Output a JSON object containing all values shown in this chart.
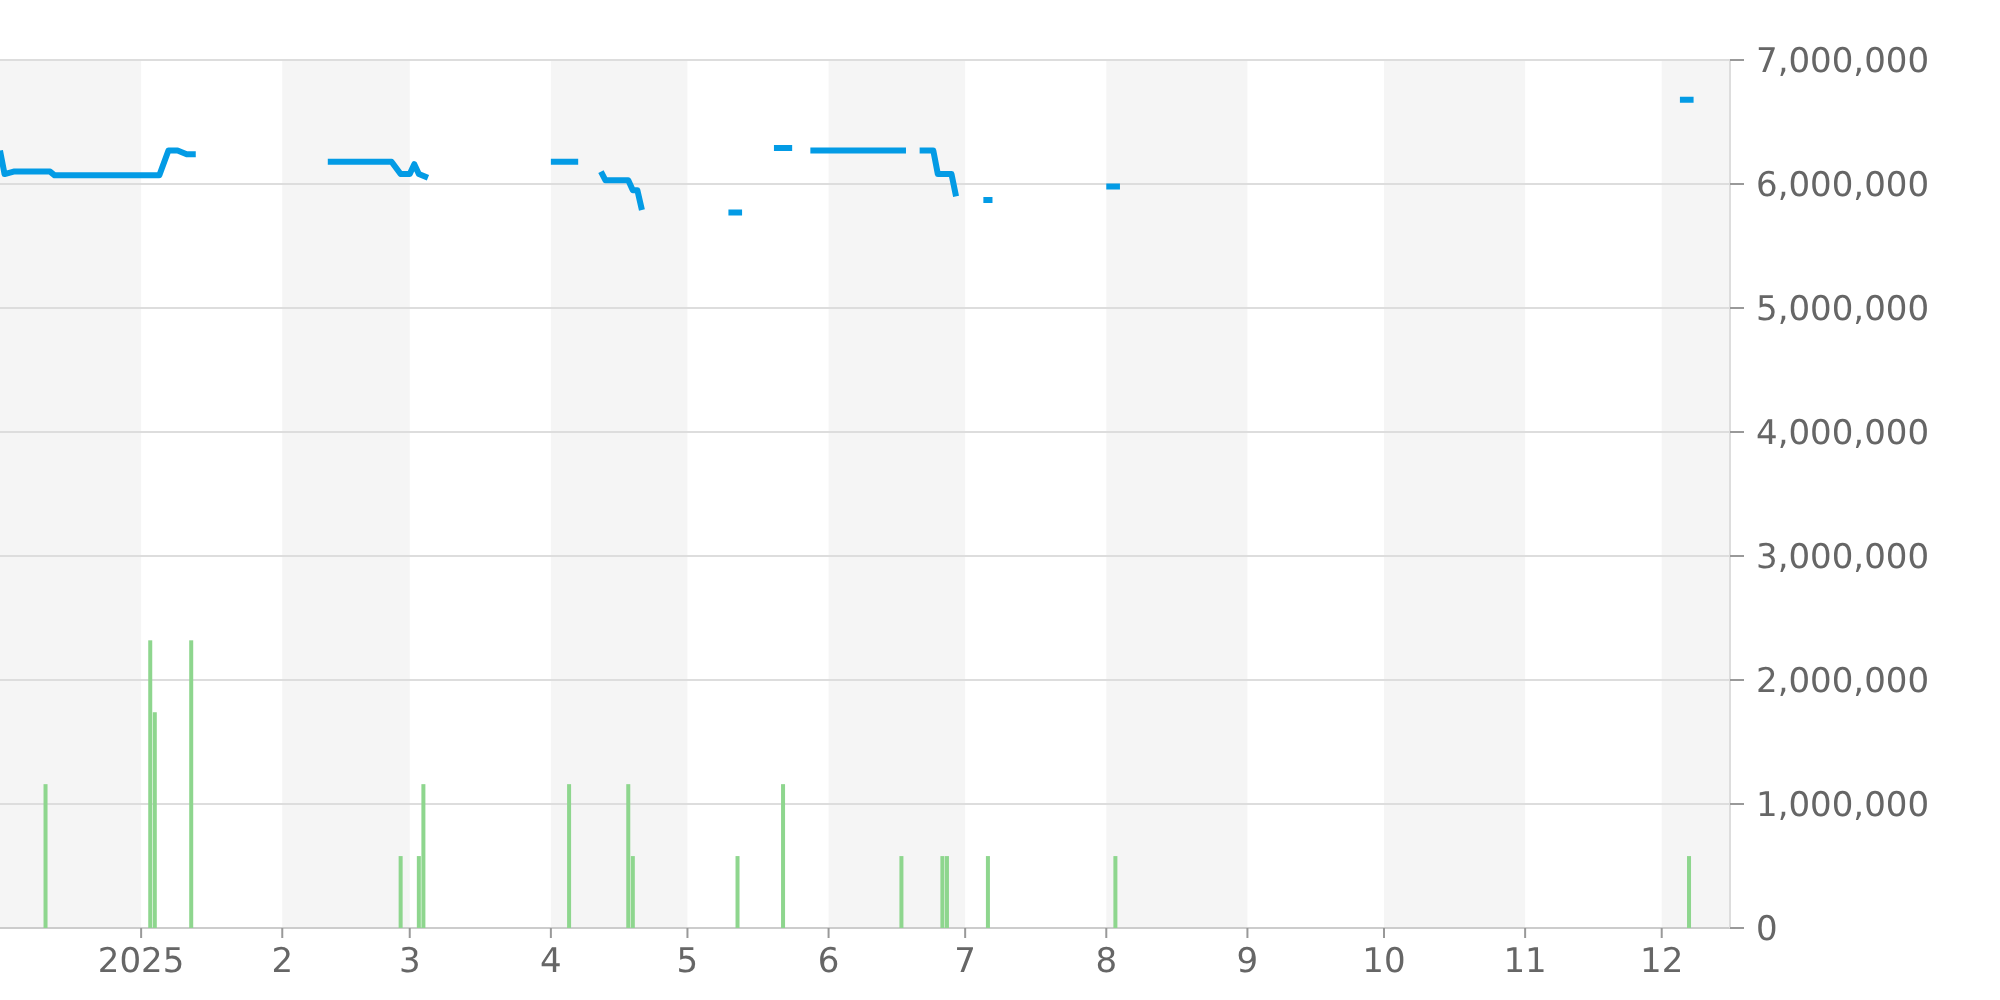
{
  "chart_data": {
    "type": "line",
    "xlim": [
      "2024-12-01",
      "2025-12-16"
    ],
    "xticks": [
      {
        "value": "2025-01-01",
        "label": "2025"
      },
      {
        "value": "2025-02-01",
        "label": "2"
      },
      {
        "value": "2025-03-01",
        "label": "3"
      },
      {
        "value": "2025-04-01",
        "label": "4"
      },
      {
        "value": "2025-05-01",
        "label": "5"
      },
      {
        "value": "2025-06-01",
        "label": "6"
      },
      {
        "value": "2025-07-01",
        "label": "7"
      },
      {
        "value": "2025-08-01",
        "label": "8"
      },
      {
        "value": "2025-09-01",
        "label": "9"
      },
      {
        "value": "2025-10-01",
        "label": "10"
      },
      {
        "value": "2025-11-01",
        "label": "11"
      },
      {
        "value": "2025-12-01",
        "label": "12"
      }
    ],
    "ylim": [
      0,
      7000000
    ],
    "yticks": [
      {
        "value": 0,
        "label": "0"
      },
      {
        "value": 1000000,
        "label": "1,000,000"
      },
      {
        "value": 2000000,
        "label": "2,000,000"
      },
      {
        "value": 3000000,
        "label": "3,000,000"
      },
      {
        "value": 4000000,
        "label": "4,000,000"
      },
      {
        "value": 5000000,
        "label": "5,000,000"
      },
      {
        "value": 6000000,
        "label": "6,000,000"
      },
      {
        "value": 7000000,
        "label": "7,000,000"
      }
    ],
    "grid": "y",
    "bands": [
      {
        "axis": "x",
        "from": "2024-12-01",
        "to": "2025-01-01",
        "color": "#f5f5f5"
      },
      {
        "axis": "x",
        "from": "2025-02-01",
        "to": "2025-03-01",
        "color": "#f5f5f5"
      },
      {
        "axis": "x",
        "from": "2025-04-01",
        "to": "2025-05-01",
        "color": "#f5f5f5"
      },
      {
        "axis": "x",
        "from": "2025-06-01",
        "to": "2025-07-01",
        "color": "#f5f5f5"
      },
      {
        "axis": "x",
        "from": "2025-08-01",
        "to": "2025-09-01",
        "color": "#f5f5f5"
      },
      {
        "axis": "x",
        "from": "2025-10-01",
        "to": "2025-11-01",
        "color": "#f5f5f5"
      },
      {
        "axis": "x",
        "from": "2025-12-01",
        "to": "2025-12-16",
        "color": "#f5f5f5"
      }
    ],
    "series": [
      {
        "type": "bar",
        "color": "#8ed68e",
        "x": [
          "2024-12-11",
          "2025-01-03",
          "2025-01-04",
          "2025-01-12",
          "2025-02-27",
          "2025-03-03",
          "2025-03-04",
          "2025-04-05",
          "2025-04-18",
          "2025-04-19",
          "2025-05-12",
          "2025-05-22",
          "2025-06-17",
          "2025-06-26",
          "2025-06-27",
          "2025-07-06",
          "2025-08-03",
          "2025-12-07"
        ],
        "values": [
          1160000,
          2320000,
          1740000,
          2320000,
          580000,
          580000,
          1160000,
          1160000,
          1160000,
          580000,
          580000,
          1160000,
          580000,
          580000,
          580000,
          580000,
          580000,
          580000
        ]
      },
      {
        "color": "#039be5",
        "x": [
          "2024-12-01",
          "2024-12-02",
          "2024-12-04",
          "2024-12-12",
          "2024-12-13",
          "2025-01-05",
          "2025-01-07",
          "2025-01-09",
          "2025-01-11",
          "2025-01-13",
          "2025-01-20",
          "2025-02-11",
          "2025-02-25",
          "2025-02-27",
          "2025-03-01",
          "2025-03-02",
          "2025-03-03",
          "2025-03-05",
          "2025-03-15",
          "2025-04-01",
          "2025-04-07",
          "2025-04-09",
          "2025-04-12",
          "2025-04-13",
          "2025-04-18",
          "2025-04-19",
          "2025-04-20",
          "2025-04-21",
          "2025-05-01",
          "2025-05-10",
          "2025-05-13",
          "2025-05-16",
          "2025-05-20",
          "2025-05-24",
          "2025-05-26",
          "2025-05-28",
          "2025-06-18",
          "2025-06-19",
          "2025-06-21",
          "2025-06-24",
          "2025-06-25",
          "2025-06-28",
          "2025-06-29",
          "2025-07-02",
          "2025-07-05",
          "2025-07-07",
          "2025-07-20",
          "2025-08-01",
          "2025-08-04",
          "2025-08-10",
          "2025-12-05",
          "2025-12-08"
        ],
        "values": [
          6270000,
          6080000,
          6100000,
          6100000,
          6070000,
          6070000,
          6270000,
          6270000,
          6240000,
          6240000,
          null,
          6180000,
          6180000,
          6080000,
          6080000,
          6160000,
          6080000,
          6050000,
          null,
          6180000,
          6180000,
          null,
          6100000,
          6030000,
          6030000,
          5950000,
          5950000,
          5790000,
          null,
          5770000,
          5770000,
          null,
          6290000,
          6290000,
          null,
          6270000,
          6270000,
          null,
          6270000,
          6270000,
          6080000,
          6080000,
          5900000,
          null,
          5870000,
          5870000,
          null,
          5980000,
          5980000,
          null,
          6680000,
          6680000
        ]
      }
    ]
  }
}
